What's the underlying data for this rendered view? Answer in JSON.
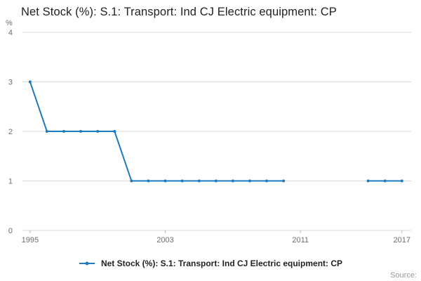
{
  "title": "Net Stock (%): S.1: Transport: Ind CJ Electric equipment: CP",
  "legend": {
    "label": "Net Stock (%): S.1: Transport: Ind CJ Electric equipment: CP"
  },
  "source": "Source:",
  "colors": {
    "line": "#1f7bbf",
    "grid": "#d9d9d9",
    "axis_text": "#6d6e71",
    "title_text": "#222222"
  },
  "chart_data": {
    "type": "line",
    "title": "Net Stock (%): S.1: Transport: Ind CJ Electric equipment: CP",
    "xlabel": "",
    "ylabel": "%",
    "ylim": [
      0,
      4
    ],
    "xlim": [
      1994.55,
      2017.55
    ],
    "yticks": [
      0,
      1,
      2,
      3,
      4
    ],
    "xticks": [
      1995,
      2003,
      2011,
      2017
    ],
    "grid": "horizontal",
    "legend_position": "bottom",
    "series": [
      {
        "name": "Net Stock (%): S.1: Transport: Ind CJ Electric equipment: CP",
        "points": [
          [
            1995,
            3
          ],
          [
            1996,
            2
          ],
          [
            1997,
            2
          ],
          [
            1998,
            2
          ],
          [
            1999,
            2
          ],
          [
            2000,
            2
          ],
          [
            2001,
            1
          ],
          [
            2002,
            1
          ],
          [
            2003,
            1
          ],
          [
            2004,
            1
          ],
          [
            2005,
            1
          ],
          [
            2006,
            1
          ],
          [
            2007,
            1
          ],
          [
            2008,
            1
          ],
          [
            2009,
            1
          ],
          [
            2010,
            1
          ],
          [
            2015,
            1
          ],
          [
            2016,
            1
          ],
          [
            2017,
            1
          ]
        ]
      }
    ]
  }
}
